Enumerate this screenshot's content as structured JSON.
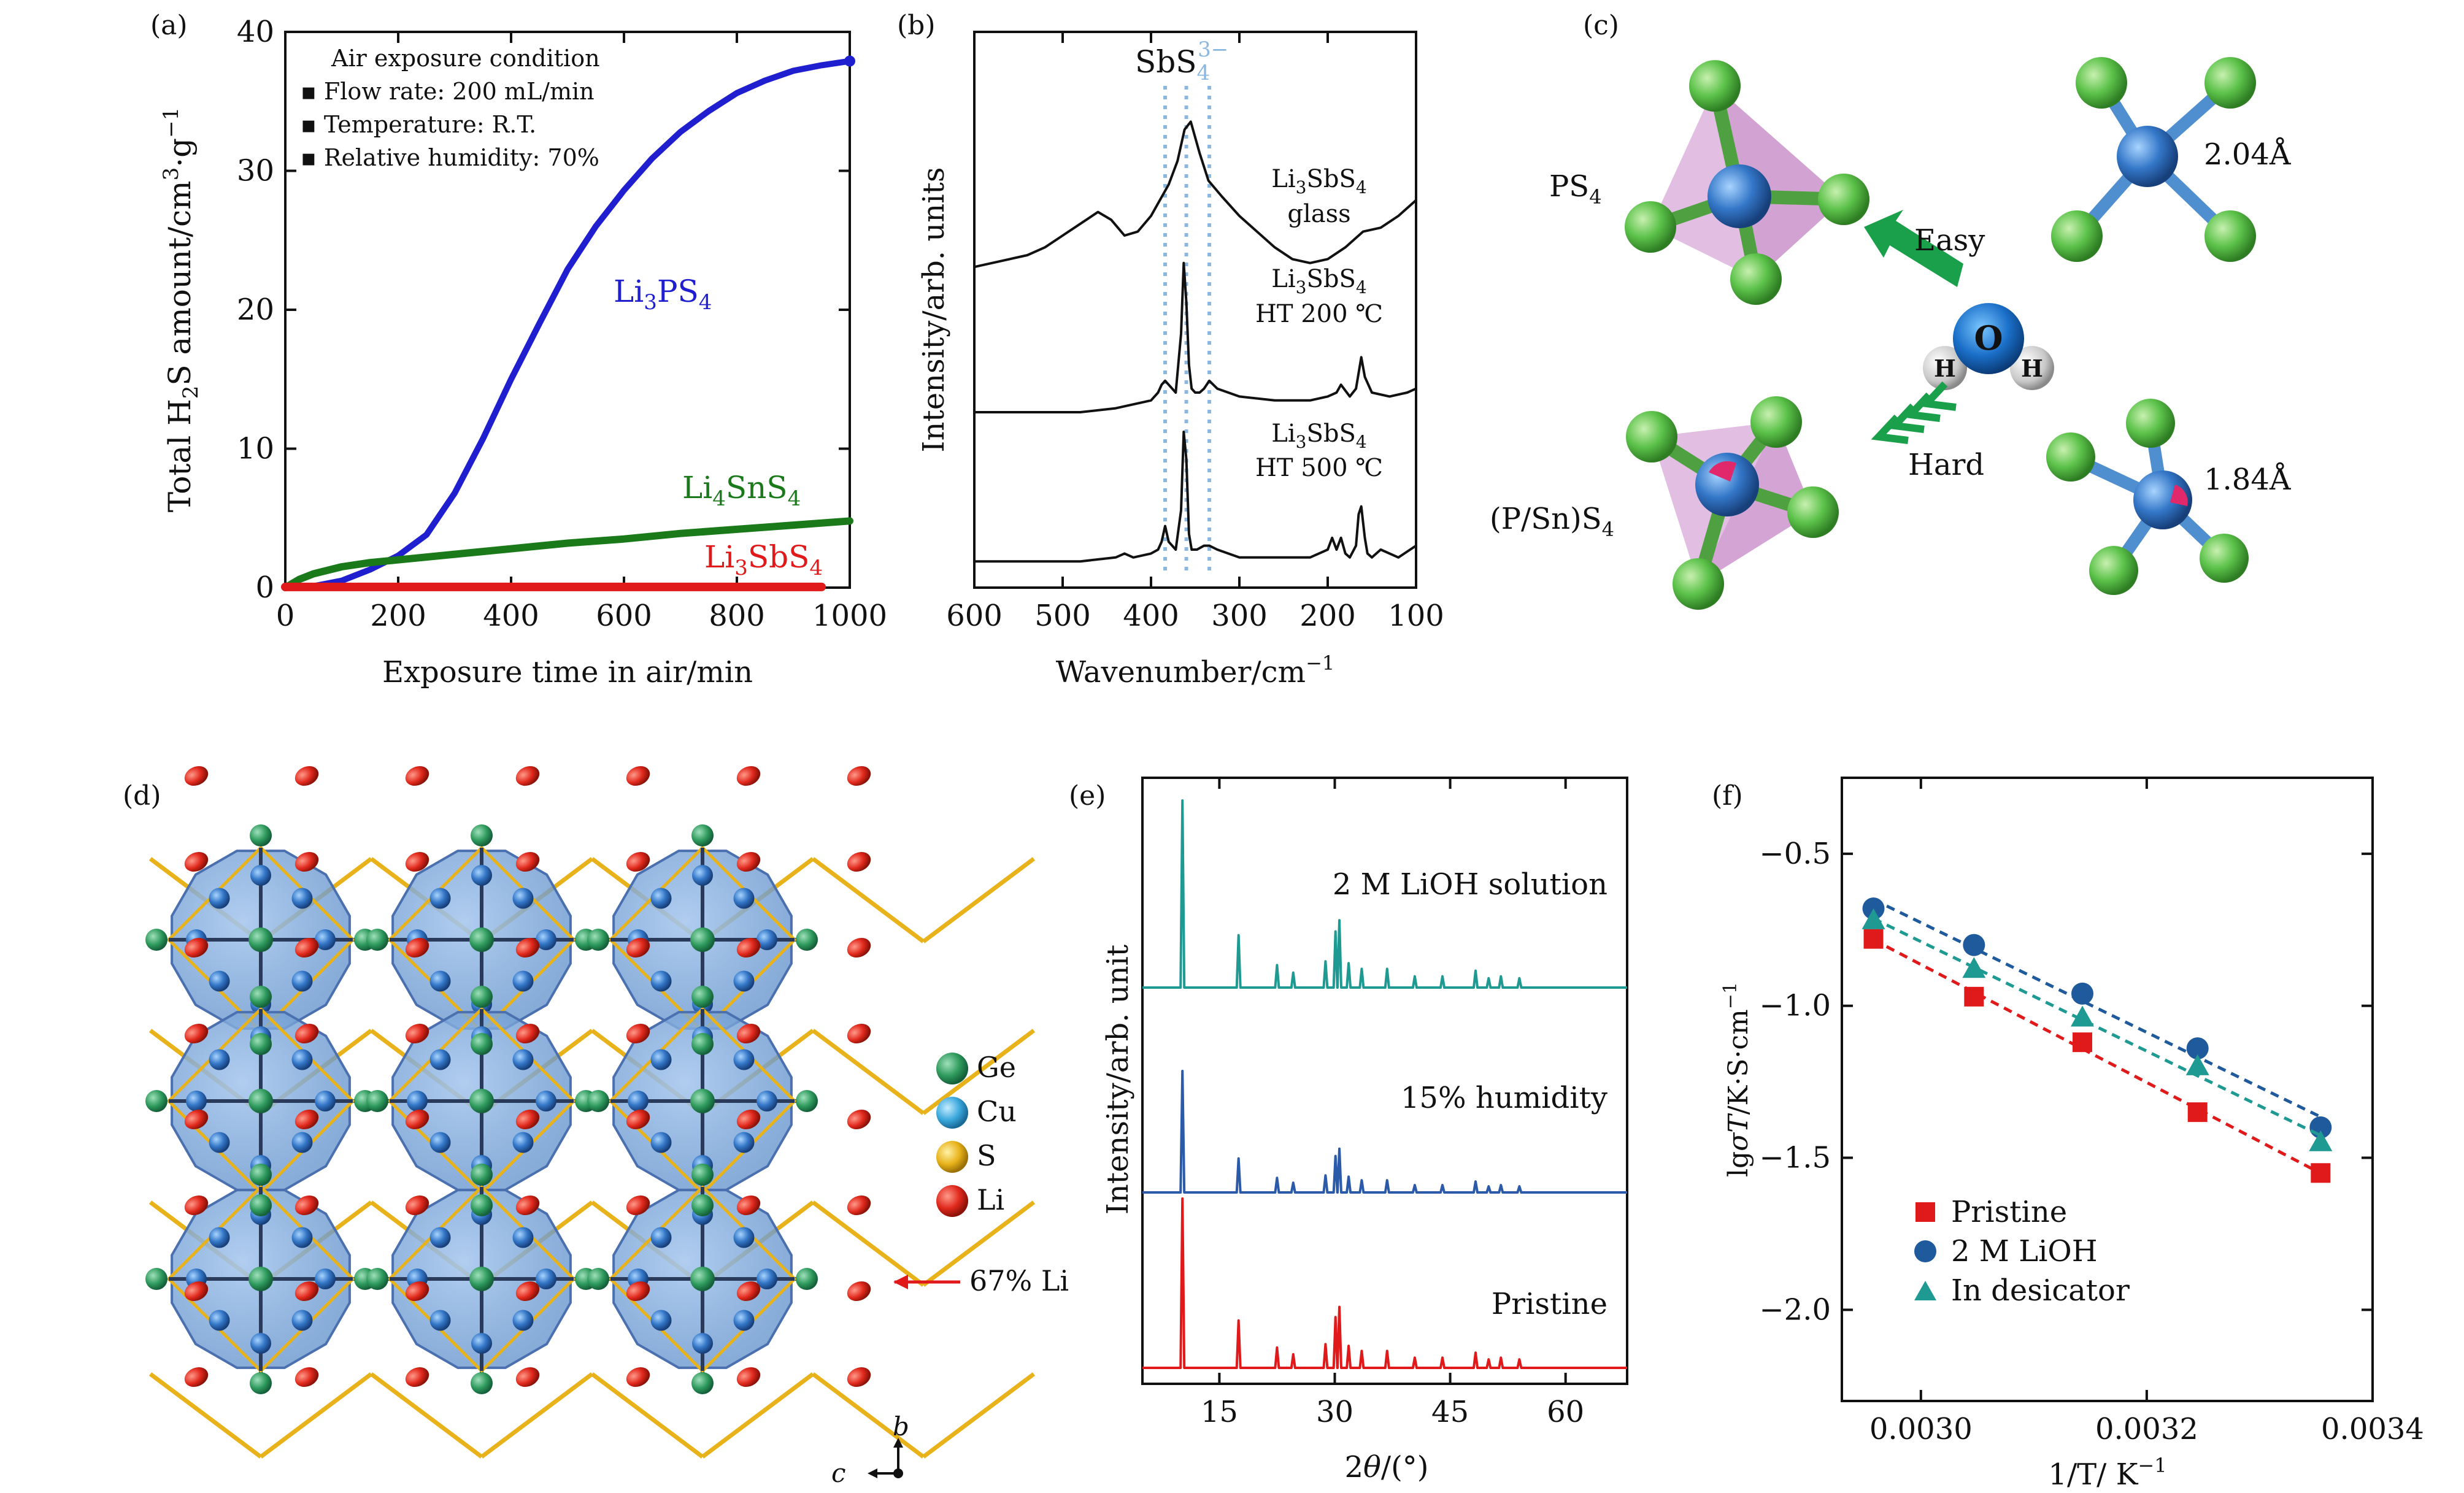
{
  "figure": {
    "colors": {
      "blue": "#1f1fd0",
      "green": "#1a7a1a",
      "red": "#e01a1a",
      "teal": "#1f9a92",
      "navy": "#2a5aa8",
      "sbs": "#8ab8e0"
    }
  },
  "chart_data": [
    {
      "panel": "(a)",
      "type": "line",
      "xlabel": "Exposure time in air/min",
      "ylabel": "Total H2S amount/cm3·g−1",
      "xlim": [
        0,
        1000
      ],
      "ylim": [
        0,
        40
      ],
      "xticks": [
        "0",
        "200",
        "400",
        "600",
        "800",
        "1000"
      ],
      "yticks": [
        "0",
        "10",
        "20",
        "30",
        "40"
      ],
      "legend_title": "Air exposure condition",
      "legend_lines": [
        "▪ Flow rate: 200 mL/min",
        "▪ Temperature: R.T.",
        "▪ Relative humidity: 70%"
      ],
      "series": [
        {
          "name": "Li3PS4",
          "label_parts": [
            "Li",
            "3",
            "PS",
            "4"
          ],
          "color": "#1f1fd0",
          "x": [
            0,
            50,
            100,
            150,
            200,
            250,
            300,
            350,
            400,
            450,
            500,
            550,
            600,
            650,
            700,
            750,
            800,
            850,
            900,
            950,
            1000
          ],
          "y": [
            0,
            0.1,
            0.5,
            1.3,
            2.3,
            3.8,
            6.8,
            10.7,
            15.0,
            19.0,
            22.9,
            26.0,
            28.6,
            30.9,
            32.8,
            34.3,
            35.6,
            36.5,
            37.2,
            37.6,
            37.9
          ]
        },
        {
          "name": "Li4SnS4",
          "label_parts": [
            "Li",
            "4",
            "SnS",
            "4"
          ],
          "color": "#1a7a1a",
          "x": [
            0,
            25,
            50,
            100,
            150,
            200,
            300,
            400,
            500,
            600,
            700,
            800,
            900,
            1000
          ],
          "y": [
            0,
            0.6,
            1.0,
            1.5,
            1.8,
            2.0,
            2.4,
            2.8,
            3.2,
            3.5,
            3.9,
            4.2,
            4.5,
            4.8
          ]
        },
        {
          "name": "Li3SbS4",
          "label_parts": [
            "Li",
            "3",
            "SbS",
            "4"
          ],
          "color": "#e01a1a",
          "x": [
            0,
            950
          ],
          "y": [
            0.05,
            0.05
          ]
        }
      ]
    },
    {
      "panel": "(b)",
      "type": "line",
      "xlabel": "Wavenumber/cm−1",
      "ylabel": "Intensity/arb. units",
      "xlim": [
        600,
        100
      ],
      "xticks": [
        "600",
        "500",
        "400",
        "300",
        "200",
        "100"
      ],
      "annotation": "SbS43−",
      "reference_lines_cm": [
        384,
        360,
        334
      ],
      "series": [
        {
          "name": "Li3SbS4 glass",
          "label_line1": "Li3SbS4",
          "label_line2": "glass",
          "x": [
            600,
            580,
            560,
            540,
            520,
            500,
            480,
            460,
            445,
            430,
            415,
            400,
            390,
            380,
            370,
            362,
            355,
            345,
            335,
            320,
            300,
            280,
            260,
            240,
            220,
            200,
            180,
            160,
            140,
            120,
            100
          ],
          "y": [
            0.77,
            0.78,
            0.79,
            0.8,
            0.82,
            0.85,
            0.88,
            0.91,
            0.89,
            0.85,
            0.86,
            0.9,
            0.94,
            0.98,
            1.04,
            1.12,
            1.14,
            1.06,
            0.99,
            0.95,
            0.9,
            0.86,
            0.82,
            0.79,
            0.78,
            0.79,
            0.82,
            0.86,
            0.87,
            0.9,
            0.94
          ]
        },
        {
          "name": "Li3SbS4 HT 200 ℃",
          "label_line1": "Li3SbS4",
          "label_line2": "HT 200 ℃",
          "x": [
            600,
            560,
            520,
            480,
            440,
            420,
            400,
            392,
            388,
            384,
            380,
            372,
            366,
            363,
            360,
            357,
            354,
            350,
            345,
            340,
            334,
            325,
            300,
            260,
            220,
            200,
            190,
            185,
            175,
            168,
            165,
            162,
            158,
            150,
            130,
            110,
            100
          ],
          "y": [
            0.4,
            0.4,
            0.4,
            0.4,
            0.41,
            0.42,
            0.43,
            0.45,
            0.47,
            0.48,
            0.47,
            0.45,
            0.6,
            0.78,
            0.68,
            0.52,
            0.46,
            0.45,
            0.45,
            0.46,
            0.48,
            0.46,
            0.44,
            0.43,
            0.43,
            0.44,
            0.45,
            0.47,
            0.44,
            0.46,
            0.5,
            0.54,
            0.49,
            0.45,
            0.44,
            0.45,
            0.46
          ]
        },
        {
          "name": "Li3SbS4 HT 500 ℃",
          "label_line1": "Li3SbS4",
          "label_line2": "HT 500 ℃",
          "x": [
            600,
            560,
            520,
            480,
            440,
            430,
            420,
            400,
            392,
            388,
            384,
            380,
            372,
            366,
            363,
            360,
            357,
            354,
            348,
            340,
            334,
            325,
            300,
            260,
            220,
            200,
            195,
            190,
            185,
            180,
            175,
            168,
            165,
            162,
            158,
            155,
            150,
            140,
            120,
            100
          ],
          "y": [
            0.02,
            0.02,
            0.02,
            0.02,
            0.03,
            0.04,
            0.03,
            0.04,
            0.05,
            0.07,
            0.11,
            0.07,
            0.05,
            0.15,
            0.35,
            0.28,
            0.09,
            0.05,
            0.05,
            0.06,
            0.06,
            0.05,
            0.03,
            0.03,
            0.03,
            0.05,
            0.08,
            0.05,
            0.08,
            0.04,
            0.03,
            0.06,
            0.14,
            0.16,
            0.08,
            0.04,
            0.03,
            0.05,
            0.03,
            0.06
          ]
        }
      ]
    },
    {
      "panel": "(e)",
      "type": "line",
      "xlabel": "2θ/(°)",
      "ylabel": "Intensity/arb. unit",
      "xlim": [
        5,
        68
      ],
      "xticks": [
        "15",
        "30",
        "45",
        "60"
      ],
      "peaks_2theta": [
        10.2,
        17.5,
        22.5,
        24.6,
        28.8,
        30.1,
        30.6,
        31.8,
        33.5,
        36.8,
        40.4,
        44.0,
        48.3,
        50.0,
        51.6,
        54.0
      ],
      "peak_rel": [
        1.0,
        0.28,
        0.12,
        0.08,
        0.14,
        0.3,
        0.36,
        0.13,
        0.1,
        0.1,
        0.06,
        0.06,
        0.09,
        0.05,
        0.06,
        0.05
      ],
      "series": [
        {
          "name": "2 M LiOH solution",
          "color": "#1f9a92",
          "scale": 1.0
        },
        {
          "name": "15% humidity",
          "color": "#2a5aa8",
          "scale": 0.6
        },
        {
          "name": "Pristine",
          "color": "#e01a1a",
          "scale": 0.92
        }
      ]
    },
    {
      "panel": "(f)",
      "type": "scatter",
      "xlabel": "1/T/ K−1",
      "ylabel": "lgσT/K·S·cm−1",
      "xlim": [
        0.00293,
        0.0034
      ],
      "ylim": [
        -2.3,
        -0.25
      ],
      "xticks": [
        "0.0030",
        "0.0032",
        "0.0034"
      ],
      "yticks": [
        "−0.5",
        "−1.0",
        "−1.5",
        "−2.0"
      ],
      "series": [
        {
          "name": "Pristine",
          "marker": "square",
          "color": "#e01a1a",
          "x": [
            0.002958,
            0.003047,
            0.003143,
            0.003245,
            0.003354
          ],
          "y": [
            -0.78,
            -0.97,
            -1.12,
            -1.35,
            -1.55
          ]
        },
        {
          "name": "2 M LiOH",
          "marker": "circle",
          "color": "#1e5a9c",
          "x": [
            0.002958,
            0.003047,
            0.003143,
            0.003245,
            0.003354
          ],
          "y": [
            -0.68,
            -0.8,
            -0.96,
            -1.14,
            -1.4
          ]
        },
        {
          "name": "In desicator",
          "marker": "triangle",
          "color": "#1f9a92",
          "x": [
            0.002958,
            0.003047,
            0.003143,
            0.003245,
            0.003354
          ],
          "y": [
            -0.72,
            -0.88,
            -1.04,
            -1.2,
            -1.45
          ]
        }
      ]
    }
  ],
  "panel_c": {
    "label": "(c)",
    "ps4_label": "PS4",
    "psn_label": "(P/Sn)S4",
    "easy_label": "Easy",
    "hard_label": "Hard",
    "bond_top": "2.04Å",
    "bond_bottom": "1.84Å",
    "water": {
      "o": "O",
      "h": "H"
    }
  },
  "panel_d": {
    "label": "(d)",
    "legend": [
      {
        "label": "Ge",
        "color": "#2e9a5c"
      },
      {
        "label": "Cu",
        "color": "#3aa8dc"
      },
      {
        "label": "S",
        "color": "#e8b21a"
      },
      {
        "label": "Li",
        "color": "#d8261c"
      }
    ],
    "annotation": "67% Li",
    "axes": {
      "b": "b",
      "c": "c"
    }
  }
}
